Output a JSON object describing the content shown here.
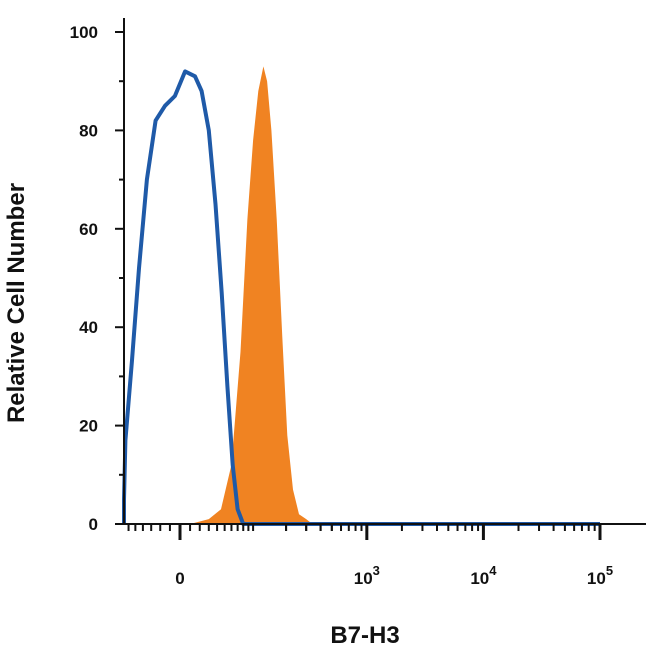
{
  "chart_data": {
    "type": "area",
    "title": "",
    "xlabel": "B7-H3",
    "ylabel": "Relative Cell Number",
    "x_scale": "biexponential",
    "x_ticks": [
      {
        "value": 0,
        "base": "0",
        "exp": ""
      },
      {
        "value": 1000,
        "base": "10",
        "exp": "3"
      },
      {
        "value": 10000,
        "base": "10",
        "exp": "4"
      },
      {
        "value": 100000,
        "base": "10",
        "exp": "5"
      }
    ],
    "ylim": [
      0,
      100
    ],
    "y_ticks": [
      0,
      20,
      40,
      60,
      80,
      100
    ],
    "grid": false,
    "legend": "none",
    "series": [
      {
        "style": "filled",
        "color": "#f08322",
        "points": [
          [
            -200,
            0
          ],
          [
            10,
            0
          ],
          [
            30,
            1
          ],
          [
            45,
            3
          ],
          [
            60,
            12
          ],
          [
            75,
            35
          ],
          [
            88,
            62
          ],
          [
            100,
            78
          ],
          [
            112,
            88
          ],
          [
            125,
            93
          ],
          [
            135,
            90
          ],
          [
            148,
            80
          ],
          [
            165,
            62
          ],
          [
            185,
            38
          ],
          [
            205,
            18
          ],
          [
            230,
            7
          ],
          [
            260,
            2
          ],
          [
            300,
            1
          ],
          [
            340,
            0
          ],
          [
            400,
            0
          ],
          [
            100000,
            0
          ]
        ]
      },
      {
        "style": "outline",
        "color": "#1f5aa8",
        "points": [
          [
            -200,
            0
          ],
          [
            -130,
            0
          ],
          [
            -100,
            1
          ],
          [
            -80,
            5
          ],
          [
            -65,
            17
          ],
          [
            -55,
            33
          ],
          [
            -45,
            52
          ],
          [
            -35,
            70
          ],
          [
            -25,
            82
          ],
          [
            -15,
            85
          ],
          [
            -5,
            87
          ],
          [
            5,
            92
          ],
          [
            15,
            91
          ],
          [
            22,
            88
          ],
          [
            30,
            80
          ],
          [
            38,
            65
          ],
          [
            46,
            47
          ],
          [
            54,
            28
          ],
          [
            62,
            12
          ],
          [
            70,
            3
          ],
          [
            80,
            0
          ],
          [
            100000,
            0
          ]
        ]
      }
    ]
  }
}
